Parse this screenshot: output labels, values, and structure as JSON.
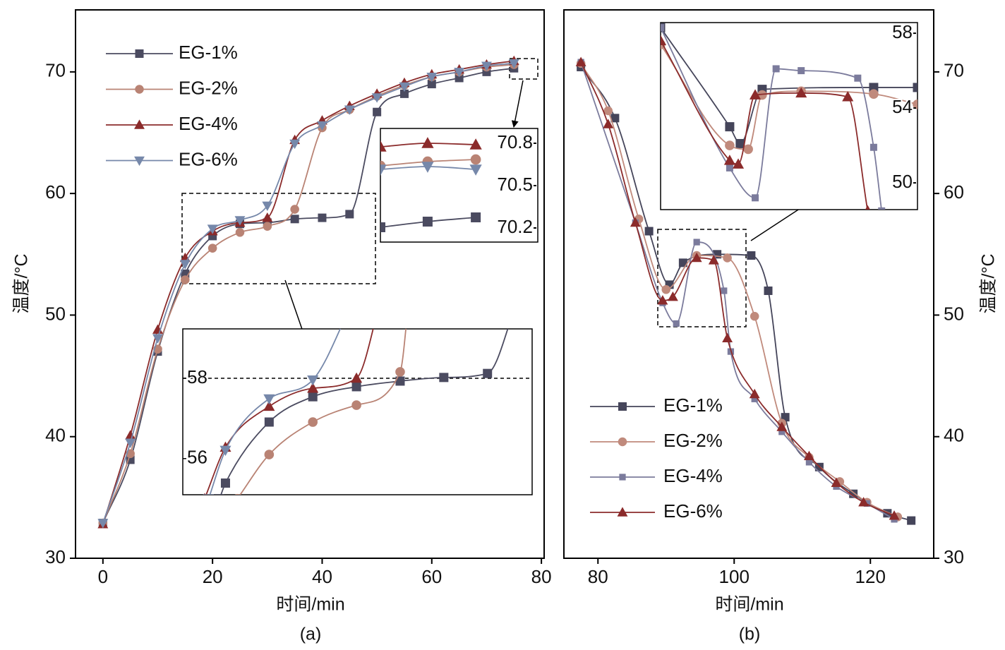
{
  "chart_data": [
    {
      "type": "line",
      "xlabel": "时间/min",
      "ylabel": "温度/°C",
      "caption": "(a)",
      "xlim": [
        -5,
        80.5
      ],
      "ylim": [
        30,
        75.1
      ],
      "xticks": [
        0,
        20,
        40,
        60,
        80
      ],
      "yticks": [
        30,
        40,
        50,
        60,
        70
      ],
      "yaxis_side": "left",
      "legend": "upper left",
      "x": [
        0,
        5,
        10,
        15,
        20,
        25,
        30,
        35,
        40,
        45,
        50,
        55,
        60,
        65,
        70,
        75
      ],
      "series": [
        {
          "name": "EG-1%",
          "color": "#4b4b60",
          "marker": "square",
          "values": [
            32.9,
            38.1,
            47,
            53.4,
            56.5,
            57.5,
            57.6,
            57.9,
            58,
            58.3,
            66.7,
            68.2,
            69,
            69.5,
            70,
            70.3
          ]
        },
        {
          "name": "EG-2%",
          "color": "#b98374",
          "marker": "circle",
          "values": [
            32.9,
            38.6,
            47.2,
            52.9,
            55.5,
            56.8,
            57.3,
            58.7,
            65.4,
            66.9,
            68,
            68.9,
            69.6,
            70,
            70.4,
            70.6
          ]
        },
        {
          "name": "EG-4%",
          "color": "#8b2b2b",
          "marker": "triangle",
          "values": [
            32.8,
            40.1,
            48.8,
            54.7,
            56.9,
            57.6,
            58,
            64.4,
            66,
            67.2,
            68.2,
            69.1,
            69.8,
            70.2,
            70.6,
            70.9
          ]
        },
        {
          "name": "EG-6%",
          "color": "#7688aa",
          "marker": "triangle-down",
          "values": [
            32.9,
            39.5,
            48.1,
            54.2,
            57.1,
            57.8,
            59,
            64.1,
            65.6,
            66.9,
            67.9,
            68.8,
            69.6,
            70,
            70.5,
            70.7
          ]
        }
      ]
    },
    {
      "type": "line",
      "xlim": [
        14.5,
        49.7
      ],
      "ylim": [
        55.1,
        59.23
      ],
      "yticks": [
        56,
        58
      ],
      "refline": 58,
      "series": [
        {
          "color": "#4b4b60",
          "marker": "square",
          "x": [
            18.2,
            18.8,
            23.2,
            27.6,
            32,
            36.4,
            40.8,
            45.2,
            48.3
          ],
          "values": [
            55,
            55.39,
            56.91,
            57.54,
            57.79,
            57.93,
            58.02,
            58.12,
            60
          ]
        },
        {
          "color": "#b98374",
          "marker": "circle",
          "x": [
            20,
            23.2,
            27.6,
            32,
            36.4,
            37.3
          ],
          "values": [
            55,
            56.1,
            56.91,
            57.33,
            58.16,
            60
          ]
        },
        {
          "color": "#8b2b2b",
          "marker": "triangle",
          "x": [
            16.7,
            18.8,
            23.2,
            27.6,
            32,
            34.5
          ],
          "values": [
            55,
            56.28,
            57.3,
            57.75,
            58,
            60
          ]
        },
        {
          "color": "#7688aa",
          "marker": "triangle-down",
          "x": [
            17.1,
            18.8,
            23.2,
            27.6,
            31.8
          ],
          "values": [
            55,
            56.21,
            57.49,
            57.96,
            60
          ]
        }
      ]
    },
    {
      "type": "line",
      "xlim": [
        74.1,
        79.2
      ],
      "ylim": [
        70.1,
        70.905
      ],
      "yticks": [
        70.2,
        70.5,
        70.8
      ],
      "x": [
        74.1,
        75.63,
        77.19
      ],
      "series": [
        {
          "color": "#4b4b60",
          "marker": "square",
          "values": [
            70.205,
            70.245,
            70.275
          ]
        },
        {
          "color": "#b98374",
          "marker": "circle",
          "values": [
            70.64,
            70.67,
            70.685
          ]
        },
        {
          "color": "#8b2b2b",
          "marker": "triangle",
          "values": [
            70.775,
            70.8,
            70.79
          ]
        },
        {
          "color": "#7688aa",
          "marker": "triangle-down",
          "values": [
            70.615,
            70.635,
            70.615
          ]
        }
      ]
    },
    {
      "type": "line",
      "xlabel": "时间/min",
      "ylabel": "温度/°C",
      "caption": "(b)",
      "xlim": [
        75,
        129.3
      ],
      "ylim": [
        30,
        75.1
      ],
      "xticks": [
        80,
        100,
        120
      ],
      "yticks": [
        30,
        40,
        50,
        60,
        70
      ],
      "yaxis_side": "right",
      "legend": "lower left",
      "series": [
        {
          "name": "EG-1%",
          "color": "#45455a",
          "marker": "square",
          "x": [
            77.5,
            82.5,
            87.5,
            90.5,
            92.5,
            97.5,
            102.5,
            105,
            107.5,
            112.5,
            117.5,
            122.5,
            126
          ],
          "values": [
            70.4,
            66.2,
            56.9,
            52.5,
            54.3,
            55,
            54.9,
            52,
            41.6,
            37.5,
            35.3,
            33.7,
            33.1
          ]
        },
        {
          "name": "EG-2%",
          "color": "#c08a7c",
          "marker": "circle",
          "x": [
            77.5,
            81.5,
            86,
            90,
            94.5,
            99,
            103,
            107,
            111,
            115.5,
            119.5,
            124
          ],
          "values": [
            70.7,
            66.8,
            57.9,
            52.1,
            54.9,
            54.7,
            49.9,
            41.1,
            38.3,
            36.3,
            34.6,
            33.4
          ]
        },
        {
          "name": "EG-4%",
          "color": "#7b7b9c",
          "marker": "square-small",
          "x": [
            77.5,
            85.5,
            89.5,
            91.5,
            94.5,
            98.5,
            99.5,
            103,
            107,
            111,
            115,
            119.5,
            123.5
          ],
          "values": [
            70.8,
            57.6,
            51,
            49.3,
            56,
            52,
            47,
            43.1,
            40.4,
            37.9,
            35.9,
            34.5,
            33.2
          ]
        },
        {
          "name": "EG-6%",
          "color": "#8b2b2b",
          "marker": "triangle",
          "x": [
            77.5,
            81.5,
            85.5,
            89.5,
            91,
            94.5,
            97,
            99,
            103,
            107,
            111,
            115,
            119,
            123.5
          ],
          "values": [
            70.8,
            65.7,
            57.6,
            51.2,
            51.5,
            54.7,
            54.5,
            48.1,
            43.5,
            40.8,
            38.4,
            36.2,
            34.6,
            33.5
          ]
        }
      ]
    },
    {
      "type": "line",
      "xlim": [
        88.8,
        101.7
      ],
      "ylim": [
        48.57,
        58.57
      ],
      "yticks": [
        50,
        54,
        58
      ],
      "series": [
        {
          "color": "#45455a",
          "marker": "square",
          "x": [
            88.8,
            92.27,
            92.8,
            93.9,
            99.5,
            101.7
          ],
          "values": [
            58.3,
            53,
            52.1,
            55,
            55.1,
            55.1
          ]
        },
        {
          "color": "#c08a7c",
          "marker": "circle",
          "x": [
            88.8,
            92.27,
            93.2,
            93.9,
            95.86,
            99.5,
            101.7
          ],
          "values": [
            57.4,
            52,
            51.8,
            54.7,
            54.9,
            54.75,
            54.2
          ]
        },
        {
          "color": "#7b7b9c",
          "marker": "square-small",
          "x": [
            88.8,
            92.27,
            93.55,
            94.6,
            95.86,
            98.7,
            99.5,
            99.9
          ],
          "values": [
            58.3,
            50.8,
            49.2,
            56.1,
            56,
            55.6,
            51.9,
            48.5
          ]
        },
        {
          "color": "#8b2b2b",
          "marker": "triangle",
          "x": [
            88.8,
            92.27,
            92.7,
            93.55,
            95.86,
            98.2,
            99.2
          ],
          "values": [
            57.6,
            51.2,
            51,
            54.7,
            54.8,
            54.6,
            48.5
          ]
        }
      ]
    }
  ]
}
